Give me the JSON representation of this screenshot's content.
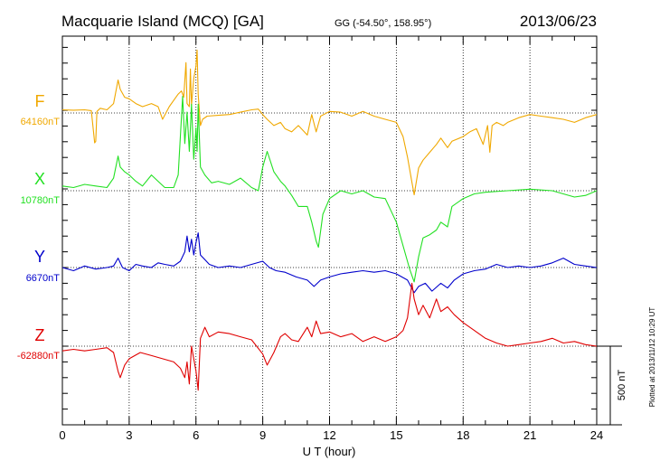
{
  "header": {
    "station": "Macquarie Island (MCQ)  [GA]",
    "coords": "GG (-54.50°, 158.95°)",
    "date": "2013/06/23"
  },
  "footer": {
    "plotted": "Plotted at 2013/11/12 10:29 UT",
    "scale_label": "500 nT"
  },
  "chart_data": {
    "type": "line",
    "xlabel": "U T (hour)",
    "xlim": [
      0,
      24
    ],
    "xticks": [
      0,
      3,
      6,
      9,
      12,
      15,
      18,
      21,
      24
    ],
    "grid": true,
    "scale_bar_nT": 500,
    "series": [
      {
        "name": "F",
        "baseline_label": "64160nT",
        "color": "#f0a800",
        "x": [
          0,
          0.5,
          1,
          1.3,
          1.45,
          1.5,
          1.55,
          1.7,
          2,
          2.3,
          2.5,
          2.6,
          2.8,
          3,
          3.3,
          3.6,
          4,
          4.3,
          4.5,
          4.8,
          5,
          5.2,
          5.35,
          5.45,
          5.55,
          5.6,
          5.7,
          5.75,
          5.8,
          5.9,
          6,
          6.05,
          6.1,
          6.2,
          6.3,
          6.5,
          7,
          7.5,
          8,
          8.5,
          8.8,
          9,
          9.2,
          9.5,
          9.8,
          10,
          10.3,
          10.6,
          11,
          11.2,
          11.4,
          11.6,
          12,
          12.5,
          13,
          13.5,
          14,
          14.5,
          15,
          15.3,
          15.5,
          15.7,
          15.8,
          16,
          16.2,
          16.5,
          16.8,
          17,
          17.3,
          17.5,
          18,
          18.3,
          18.6,
          18.9,
          19.1,
          19.2,
          19.3,
          19.5,
          19.8,
          20,
          20.5,
          21,
          21.5,
          22,
          22.5,
          23,
          23.5,
          24
        ],
        "y": [
          20,
          18,
          20,
          15,
          -190,
          -180,
          10,
          30,
          20,
          60,
          210,
          150,
          100,
          90,
          60,
          40,
          60,
          40,
          -40,
          40,
          80,
          120,
          140,
          100,
          320,
          60,
          40,
          280,
          50,
          220,
          300,
          400,
          120,
          -80,
          -40,
          -20,
          -15,
          -10,
          5,
          20,
          25,
          -10,
          -40,
          -80,
          -60,
          -100,
          -120,
          -80,
          -140,
          -10,
          -120,
          -20,
          10,
          5,
          -20,
          10,
          -20,
          -40,
          -60,
          -150,
          -280,
          -440,
          -520,
          -350,
          -300,
          -250,
          -200,
          -160,
          -220,
          -180,
          -150,
          -120,
          -100,
          -200,
          -80,
          -250,
          -80,
          -60,
          -80,
          -60,
          -30,
          -10,
          -20,
          -30,
          -40,
          -60,
          -30,
          -10
        ]
      },
      {
        "name": "X",
        "baseline_label": "10780nT",
        "color": "#22e022",
        "x": [
          0,
          0.5,
          1,
          1.5,
          2,
          2.3,
          2.5,
          2.6,
          2.8,
          3,
          3.3,
          3.6,
          4,
          4.3,
          4.6,
          5,
          5.2,
          5.4,
          5.5,
          5.6,
          5.7,
          5.8,
          5.9,
          6,
          6.05,
          6.1,
          6.2,
          6.4,
          6.7,
          7,
          7.5,
          8,
          8.5,
          8.8,
          9,
          9.2,
          9.5,
          9.8,
          10,
          10.3,
          10.6,
          11,
          11.2,
          11.4,
          11.5,
          11.7,
          12,
          12.5,
          13,
          13.5,
          14,
          14.5,
          15,
          15.3,
          15.6,
          15.8,
          16,
          16.2,
          16.5,
          16.8,
          17,
          17.3,
          17.5,
          18,
          18.5,
          19,
          20,
          21,
          22,
          22.5,
          23,
          23.5,
          24
        ],
        "y": [
          30,
          20,
          40,
          30,
          20,
          80,
          220,
          150,
          120,
          100,
          60,
          30,
          100,
          60,
          20,
          20,
          100,
          600,
          300,
          500,
          250,
          550,
          200,
          400,
          250,
          550,
          150,
          100,
          50,
          60,
          40,
          80,
          20,
          0,
          150,
          250,
          120,
          60,
          30,
          -30,
          -100,
          -100,
          -200,
          -320,
          -360,
          -150,
          -50,
          0,
          -20,
          0,
          -40,
          -50,
          -200,
          -350,
          -500,
          -580,
          -420,
          -300,
          -280,
          -250,
          -200,
          -230,
          -100,
          -50,
          -20,
          -10,
          0,
          10,
          0,
          -20,
          -40,
          -30,
          0
        ]
      },
      {
        "name": "Y",
        "baseline_label": "6670nT",
        "color": "#0000cc",
        "x": [
          0,
          0.5,
          1,
          1.5,
          2,
          2.3,
          2.5,
          2.7,
          3,
          3.3,
          3.6,
          4,
          4.3,
          4.6,
          5,
          5.3,
          5.5,
          5.6,
          5.7,
          5.8,
          5.9,
          6,
          6.1,
          6.2,
          6.4,
          6.6,
          7,
          7.5,
          8,
          8.5,
          9,
          9.3,
          9.6,
          10,
          10.5,
          11,
          11.3,
          11.6,
          12,
          12.5,
          13,
          13.5,
          14,
          14.5,
          15,
          15.5,
          15.8,
          16,
          16.3,
          16.6,
          17,
          17.3,
          17.6,
          18,
          18.5,
          19,
          19.5,
          20,
          20.5,
          21,
          21.5,
          22,
          22.5,
          23,
          23.5,
          24
        ],
        "y": [
          0,
          -20,
          10,
          -10,
          0,
          10,
          60,
          0,
          -20,
          20,
          10,
          0,
          30,
          20,
          10,
          40,
          100,
          200,
          100,
          180,
          80,
          160,
          220,
          80,
          50,
          20,
          0,
          10,
          0,
          20,
          40,
          0,
          -20,
          -30,
          -60,
          -80,
          -120,
          -80,
          -60,
          -40,
          -30,
          -20,
          -30,
          -20,
          -40,
          -80,
          -160,
          -120,
          -100,
          -150,
          -100,
          -130,
          -80,
          -40,
          -20,
          -10,
          20,
          0,
          10,
          0,
          10,
          30,
          60,
          20,
          10,
          0
        ]
      },
      {
        "name": "Z",
        "baseline_label": "-62880nT",
        "color": "#e00000",
        "x": [
          0,
          0.5,
          1,
          1.5,
          2,
          2.3,
          2.5,
          2.6,
          2.8,
          3,
          3.5,
          4,
          4.5,
          5,
          5.3,
          5.5,
          5.6,
          5.7,
          5.8,
          6,
          6.1,
          6.2,
          6.4,
          6.6,
          7,
          7.5,
          8,
          8.5,
          9,
          9.2,
          9.5,
          9.8,
          10,
          10.3,
          10.6,
          11,
          11.2,
          11.4,
          11.6,
          12,
          12.5,
          13,
          13.5,
          14,
          14.5,
          15,
          15.3,
          15.5,
          15.7,
          15.8,
          16,
          16.2,
          16.5,
          16.8,
          17,
          17.3,
          17.6,
          18,
          18.5,
          19,
          19.5,
          20,
          20.5,
          21,
          21.5,
          22,
          22.5,
          23,
          23.5,
          24
        ],
        "y": [
          -30,
          -20,
          -30,
          -20,
          -10,
          -40,
          -160,
          -200,
          -120,
          -80,
          -40,
          -60,
          -80,
          -100,
          -140,
          -200,
          -100,
          -240,
          0,
          -160,
          -280,
          50,
          120,
          60,
          90,
          80,
          60,
          40,
          -50,
          -120,
          -40,
          60,
          80,
          40,
          30,
          120,
          60,
          160,
          80,
          90,
          60,
          80,
          30,
          60,
          30,
          60,
          100,
          180,
          400,
          300,
          200,
          260,
          180,
          300,
          220,
          250,
          200,
          150,
          100,
          50,
          20,
          0,
          10,
          20,
          30,
          50,
          20,
          30,
          10,
          0
        ]
      }
    ]
  }
}
